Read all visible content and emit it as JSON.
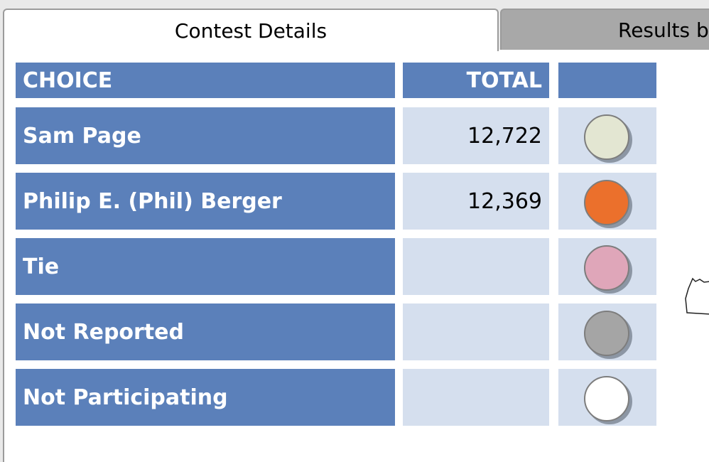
{
  "tabs": [
    {
      "label": "Contest Details",
      "active": true
    },
    {
      "label": "Results b",
      "active": false
    }
  ],
  "table": {
    "headers": {
      "choice": "CHOICE",
      "total": "TOTAL",
      "color": ""
    },
    "rows": [
      {
        "choice": "Sam Page",
        "total": "12,722",
        "swatch_color": "#e3e6d2"
      },
      {
        "choice": "Philip E. (Phil) Berger",
        "total": "12,369",
        "swatch_color": "#eb702c"
      },
      {
        "choice": "Tie",
        "total": "",
        "swatch_color": "#dfa6b9"
      },
      {
        "choice": "Not Reported",
        "total": "",
        "swatch_color": "#a5a5a5"
      },
      {
        "choice": "Not Participating",
        "total": "",
        "swatch_color": "#ffffff"
      }
    ]
  },
  "colors": {
    "header_bg": "#5b80ba",
    "cell_bg": "#d5dfee",
    "inactive_tab": "#a8a8a8"
  },
  "icons": {
    "map": "county-map-outline-icon"
  }
}
